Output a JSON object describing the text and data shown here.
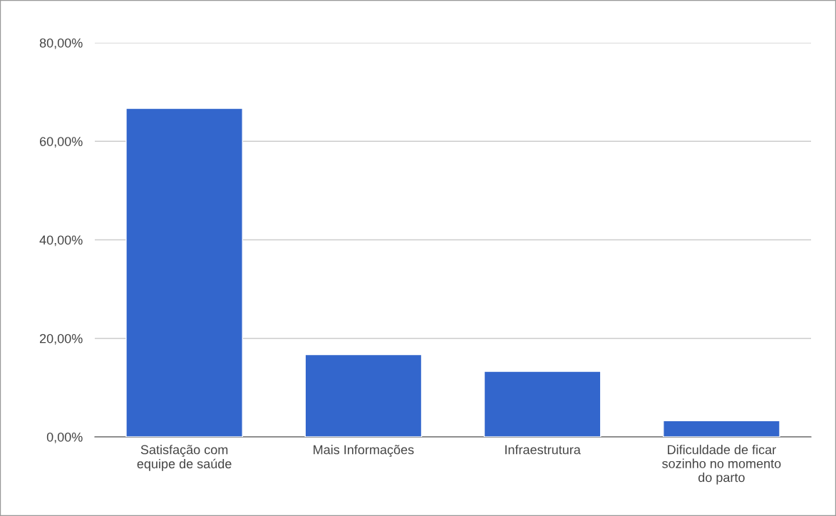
{
  "chart_data": {
    "type": "bar",
    "categories": [
      "Satisfação com\nequipe de saúde",
      "Mais Informações",
      "Infraestrutura",
      "Dificuldade de ficar\nsozinho no momento\ndo parto"
    ],
    "values": [
      66.7,
      16.7,
      13.3,
      3.3
    ],
    "color": "#3366cc",
    "ylim": [
      0,
      80
    ],
    "yticks": [
      {
        "value": 0,
        "label": "0,00%"
      },
      {
        "value": 20,
        "label": "20,00%"
      },
      {
        "value": 40,
        "label": "40,00%"
      },
      {
        "value": 60,
        "label": "60,00%"
      },
      {
        "value": 80,
        "label": "80,00%"
      }
    ],
    "grid": "y"
  }
}
